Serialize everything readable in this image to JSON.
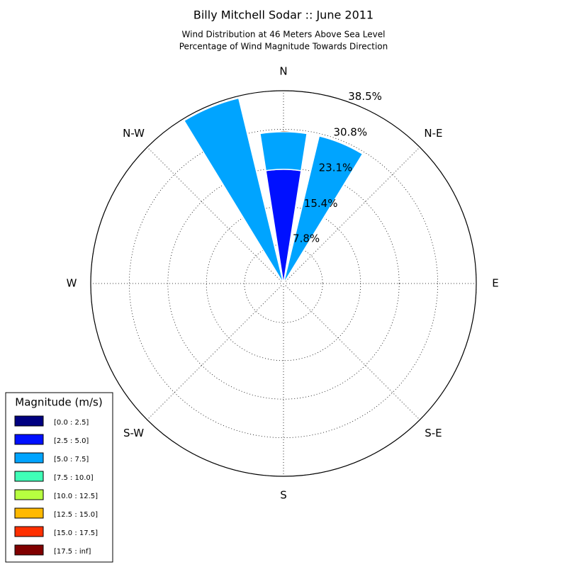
{
  "chart_data": {
    "type": "windrose",
    "title": "Billy Mitchell Sodar :: June 2011",
    "subtitle": [
      "Wind Distribution at 46 Meters Above Sea Level",
      "Percentage of Wind Magnitude Towards Direction"
    ],
    "theta": [
      0,
      22.5,
      45,
      67.5,
      90,
      112.5,
      135,
      157.5,
      180,
      202.5,
      225,
      247.5,
      270,
      292.5,
      315,
      337.5
    ],
    "xticks": [
      {
        "value": 0,
        "label": "N"
      },
      {
        "value": 45,
        "label": "N-E"
      },
      {
        "value": 90,
        "label": "E"
      },
      {
        "value": 135,
        "label": "S-E"
      },
      {
        "value": 180,
        "label": "S"
      },
      {
        "value": 225,
        "label": "S-W"
      },
      {
        "value": 270,
        "label": "W"
      },
      {
        "value": 315,
        "label": "N-W"
      }
    ],
    "ylim": [
      0,
      38.5
    ],
    "yticks": [
      {
        "value": 7.8,
        "label": "7.8%"
      },
      {
        "value": 15.4,
        "label": "15.4%"
      },
      {
        "value": 23.1,
        "label": "23.1%"
      },
      {
        "value": 30.8,
        "label": "30.8%"
      },
      {
        "value": 38.5,
        "label": "38.5%"
      }
    ],
    "grid": true,
    "legend_title": "Magnitude (m/s)",
    "legend_position": "lower left",
    "series": [
      {
        "name": "[0.0 : 2.5]",
        "color": "#000080",
        "values": [
          0,
          0,
          0,
          0,
          0,
          0,
          0,
          0,
          0,
          0,
          0,
          0,
          0,
          0,
          0,
          0
        ]
      },
      {
        "name": "[2.5 : 5.0]",
        "color": "#0010ff",
        "values": [
          22.8,
          0,
          0,
          0,
          0,
          0,
          0,
          0,
          0,
          0,
          0,
          0,
          0,
          0,
          0,
          0
        ]
      },
      {
        "name": "[5.0 : 7.5]",
        "color": "#00a4ff",
        "values": [
          7.5,
          30.3,
          0,
          0,
          0,
          0,
          0,
          0,
          0,
          0,
          0,
          0,
          0,
          0,
          0,
          38.1
        ]
      },
      {
        "name": "[7.5 : 10.0]",
        "color": "#40ffb7",
        "values": [
          0,
          0,
          0,
          0,
          0,
          0,
          0,
          0,
          0,
          0,
          0,
          0,
          0,
          0,
          0,
          0
        ]
      },
      {
        "name": "[10.0 : 12.5]",
        "color": "#b7ff40",
        "values": [
          0,
          0,
          0,
          0,
          0,
          0,
          0,
          0,
          0,
          0,
          0,
          0,
          0,
          0,
          0,
          0
        ]
      },
      {
        "name": "[12.5 : 15.0]",
        "color": "#ffb900",
        "values": [
          0,
          0,
          0,
          0,
          0,
          0,
          0,
          0,
          0,
          0,
          0,
          0,
          0,
          0,
          0,
          0
        ]
      },
      {
        "name": "[15.0 : 17.5]",
        "color": "#ff3000",
        "values": [
          0,
          0,
          0,
          0,
          0,
          0,
          0,
          0,
          0,
          0,
          0,
          0,
          0,
          0,
          0,
          0
        ]
      },
      {
        "name": "[17.5 : inf]",
        "color": "#800000",
        "values": [
          0,
          0,
          0,
          0,
          0,
          0,
          0,
          0,
          0,
          0,
          0,
          0,
          0,
          0,
          0,
          0
        ]
      }
    ]
  }
}
